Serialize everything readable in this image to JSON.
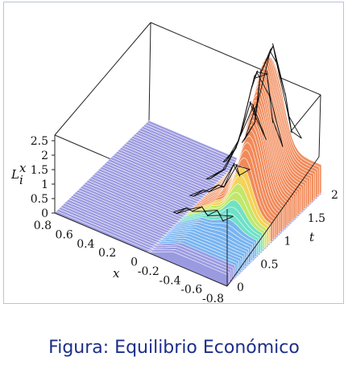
{
  "caption": "Figura: Equilibrio Económico",
  "chart_data": {
    "type": "surface3d",
    "title": "",
    "zlabel": "L_i^x",
    "xlabel": "x",
    "tlabel": "t",
    "z_ticks": [
      "0",
      "0.5",
      "1",
      "1.5",
      "2",
      "2.5"
    ],
    "x_ticks": [
      "0.8",
      "0.6",
      "0.4",
      "0.2",
      "0",
      "-0.2",
      "-0.4",
      "-0.6",
      "-0.8"
    ],
    "t_ticks": [
      "0",
      "0.5",
      "1",
      "1.5",
      "2"
    ],
    "xlim": [
      -0.8,
      0.8
    ],
    "tlim": [
      0,
      2
    ],
    "zlim": [
      0,
      2.5
    ],
    "grid": false,
    "colormap": [
      "#9a9ae0",
      "#78b4f0",
      "#6ee0c8",
      "#bfe86c",
      "#f2d35a",
      "#f08a5a"
    ],
    "ridges": [
      {
        "x": -0.35,
        "t": 1.9,
        "peak": 2.6
      },
      {
        "x": -0.45,
        "t": 1.5,
        "peak": 2.2
      },
      {
        "x": -0.55,
        "t": 1.1,
        "peak": 1.8
      }
    ]
  }
}
